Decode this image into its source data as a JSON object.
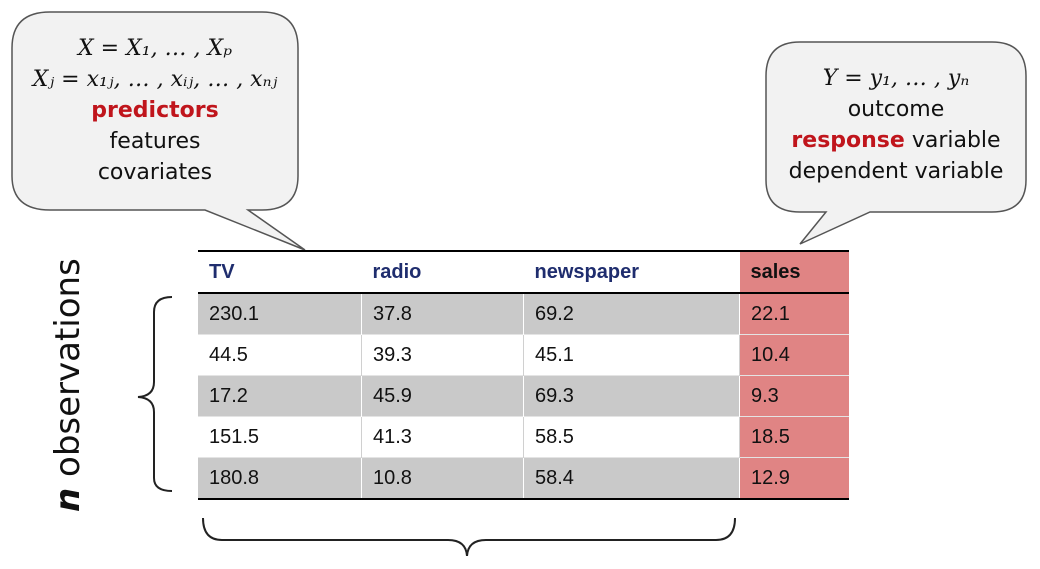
{
  "predictor_bubble": {
    "line1": "X = X₁, … , Xₚ",
    "line2": "Xⱼ = x₁ⱼ, … , xᵢⱼ, … , xₙⱼ",
    "emphasis": "predictors",
    "alt1": "features",
    "alt2": "covariates"
  },
  "response_bubble": {
    "line1": "Y = y₁, … , yₙ",
    "alt1": "outcome",
    "emphasis": "response",
    "emphasis_suffix": " variable",
    "alt2": "dependent variable"
  },
  "table": {
    "headers": [
      "TV",
      "radio",
      "newspaper",
      "sales"
    ],
    "rows": [
      [
        "230.1",
        "37.8",
        "69.2",
        "22.1"
      ],
      [
        "44.5",
        "39.3",
        "45.1",
        "10.4"
      ],
      [
        "17.2",
        "45.9",
        "69.3",
        "9.3"
      ],
      [
        "151.5",
        "41.3",
        "58.5",
        "18.5"
      ],
      [
        "180.8",
        "10.8",
        "58.4",
        "12.9"
      ]
    ]
  },
  "rows_label": {
    "n": "n",
    "text": " observations"
  },
  "colors": {
    "response_highlight": "#e08484",
    "emphasis_red": "#c0151c",
    "header_blue": "#1f2d6e"
  }
}
